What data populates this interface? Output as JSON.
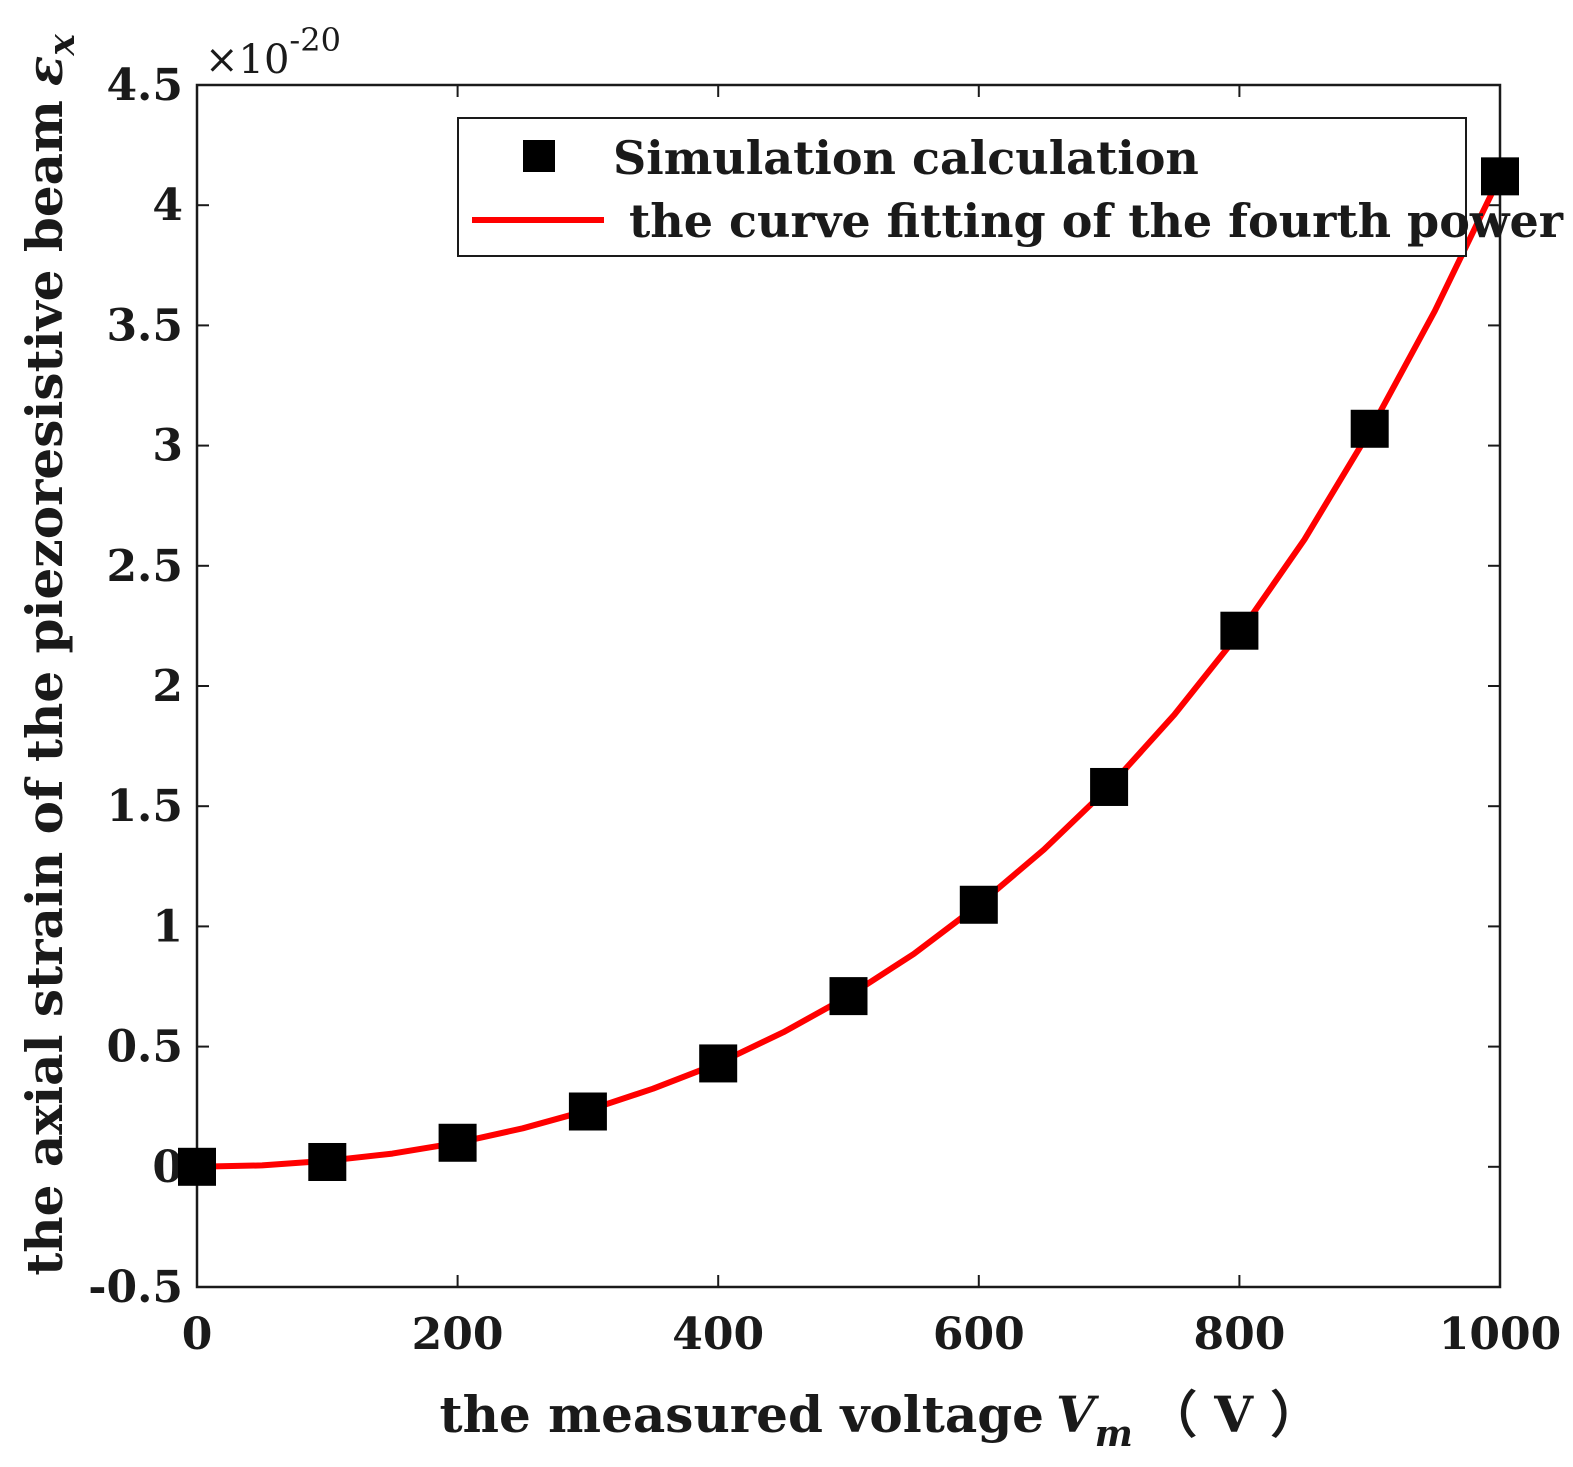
{
  "chart_data": {
    "type": "scatter",
    "title": "",
    "xlabel": "the measured voltage",
    "xlabel_symbol": "V",
    "xlabel_subscript": "m",
    "xlabel_unit": "（ V ）",
    "ylabel": "the axial strain of the piezoresistive beam",
    "ylabel_symbol": "ε",
    "ylabel_subscript": "x",
    "y_exponent_base": "×10",
    "y_exponent_power": "-20",
    "xlim": [
      0,
      1000
    ],
    "ylim": [
      -0.5,
      4.5
    ],
    "x_ticks": [
      0,
      200,
      400,
      600,
      800,
      1000
    ],
    "x_tick_labels": [
      "0",
      "200",
      "400",
      "600",
      "800",
      "1000"
    ],
    "y_ticks": [
      -0.5,
      0,
      0.5,
      1,
      1.5,
      2,
      2.5,
      3,
      3.5,
      4,
      4.5
    ],
    "y_tick_labels": [
      "-0.5",
      "0",
      "0.5",
      "1",
      "1.5",
      "2",
      "2.5",
      "3",
      "3.5",
      "4",
      "4.5"
    ],
    "grid": false,
    "legend_position": "top-right",
    "series": [
      {
        "name": "Simulation calculation",
        "kind": "markers",
        "marker": "square",
        "color": "#000000",
        "x": [
          0,
          100,
          200,
          300,
          400,
          500,
          600,
          700,
          800,
          900,
          1000
        ],
        "y": [
          0.0,
          0.02,
          0.1,
          0.23,
          0.43,
          0.71,
          1.09,
          1.58,
          2.23,
          3.07,
          4.12
        ]
      },
      {
        "name": " the curve fitting of the fourth power",
        "kind": "line",
        "color": "#ff0000",
        "x": [
          0,
          50,
          100,
          150,
          200,
          250,
          300,
          350,
          400,
          450,
          500,
          550,
          600,
          650,
          700,
          750,
          800,
          850,
          900,
          950,
          1000
        ],
        "y": [
          0.0,
          0.006,
          0.025,
          0.055,
          0.1,
          0.16,
          0.235,
          0.325,
          0.43,
          0.56,
          0.71,
          0.885,
          1.09,
          1.32,
          1.58,
          1.88,
          2.22,
          2.61,
          3.06,
          3.56,
          4.12
        ]
      }
    ]
  }
}
